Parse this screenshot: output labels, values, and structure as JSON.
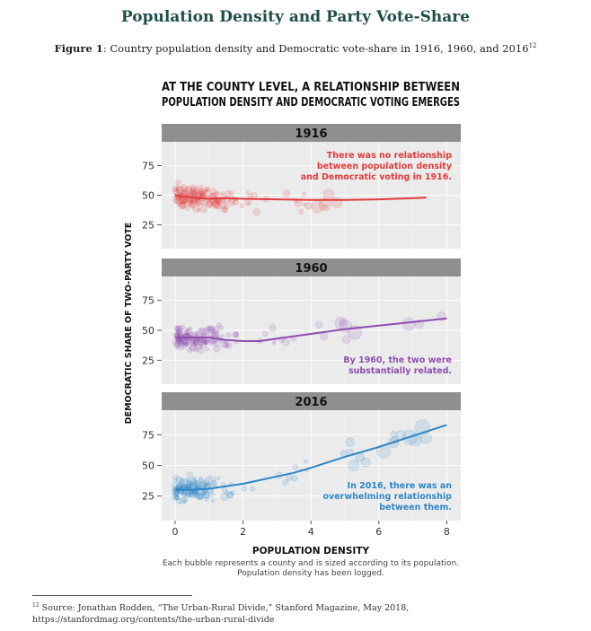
{
  "page": {
    "title": "Population Density and Party Vote-Share",
    "figure_label": "Figure 1",
    "figure_caption": ": Country population density and Democratic vote-share in 1916, 1960, and 2016",
    "figure_footnote_mark": "12",
    "footnote_mark": "12",
    "footnote_text": "Source: Jonathan Rodden, “The Urban-Rural Divide,” Stanford Magazine, May 2018, https://stanfordmag.org/contents/the-urban-rural-divide"
  },
  "chart_data": {
    "type": "scatter",
    "title": "AT THE COUNTY LEVEL, A RELATIONSHIP BETWEEN\nPOPULATION DENSITY AND DEMOCRATIC VOTING EMERGES",
    "xlabel": "POPULATION DENSITY",
    "ylabel": "DEMOCRATIC SHARE OF TWO-PARTY VOTE",
    "note": "Each bubble represents a county and is sized according to its population.\nPopulation density has been logged.",
    "xlim": [
      -0.4,
      8.4
    ],
    "ylim": [
      5,
      95
    ],
    "x_ticks": [
      0,
      2,
      4,
      6,
      8
    ],
    "y_ticks": [
      25,
      50,
      75
    ],
    "grid": true,
    "panels": [
      {
        "label": "1916",
        "color": "#e23b3b",
        "annotation": "There was no relationship\nbetween population density\nand Democratic voting in 1916.",
        "annotation_position": "top-right",
        "trend": {
          "x": [
            0,
            0.5,
            1,
            1.5,
            2,
            3,
            4,
            5,
            6,
            7,
            7.4
          ],
          "y": [
            50,
            48,
            47,
            47.5,
            47,
            46.5,
            46,
            46,
            46.5,
            47.5,
            48
          ]
        },
        "points_summary": {
          "x_range": [
            0,
            5
          ],
          "y_center": 48,
          "y_spread": 14
        }
      },
      {
        "label": "1960",
        "color": "#8e4db0",
        "annotation": "By 1960, the two were\nsubstantially related.",
        "annotation_position": "bottom-right",
        "trend": {
          "x": [
            0,
            0.5,
            1,
            1.5,
            2,
            2.5,
            3,
            4,
            5,
            6,
            7,
            8
          ],
          "y": [
            44,
            44,
            44,
            42,
            41,
            41,
            43,
            47,
            51,
            54,
            57,
            60
          ]
        },
        "points_summary": {
          "x_range": [
            0,
            8
          ],
          "y_center": 44,
          "y_spread": 14
        }
      },
      {
        "label": "2016",
        "color": "#2e86c6",
        "annotation": "In 2016, there was an\noverwhelming relationship\nbetween them.",
        "annotation_position": "bottom-right",
        "trend": {
          "x": [
            0,
            0.5,
            1,
            1.5,
            2,
            2.5,
            3,
            3.5,
            4,
            5,
            6,
            7,
            8
          ],
          "y": [
            30,
            30,
            31,
            33,
            35,
            38,
            41,
            44,
            48,
            57,
            65,
            74,
            83
          ]
        },
        "points_summary": {
          "x_range": [
            0,
            8
          ],
          "y_center": 32,
          "y_spread": 14
        }
      }
    ]
  }
}
